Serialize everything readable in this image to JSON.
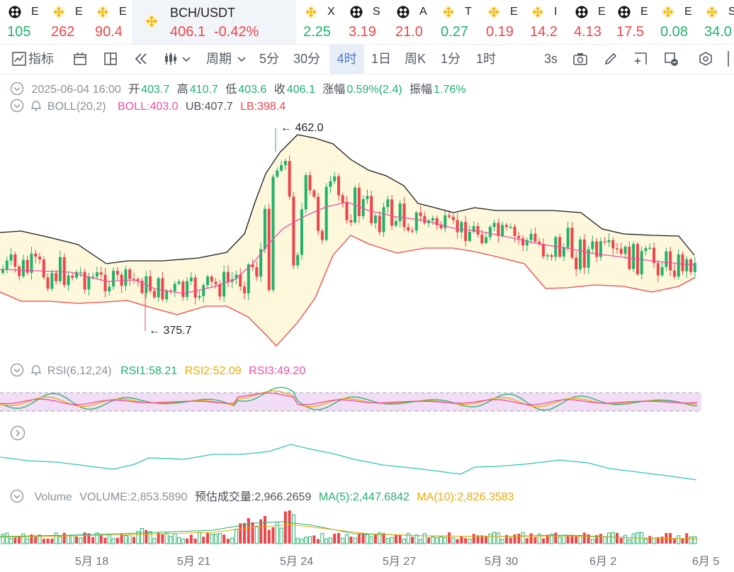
{
  "ticker": [
    {
      "glyph": "bw",
      "name": "E",
      "price": "105",
      "dir": "up"
    },
    {
      "glyph": "bn",
      "name": "E",
      "price": "262",
      "dir": "dn"
    },
    {
      "glyph": "bn",
      "name": "E",
      "price": "90.4",
      "dir": "dn"
    },
    {
      "glyph": "bn",
      "name": "BCH/USDT",
      "price": "406.1",
      "change": "-0.42%",
      "dir": "dn",
      "active": true
    },
    {
      "glyph": "bn",
      "name": "X",
      "price": "2.25",
      "dir": "up"
    },
    {
      "glyph": "bw",
      "name": "S",
      "price": "3.19",
      "dir": "dn"
    },
    {
      "glyph": "bw",
      "name": "A",
      "price": "21.0",
      "dir": "dn"
    },
    {
      "glyph": "bn",
      "name": "T",
      "price": "0.27",
      "dir": "up"
    },
    {
      "glyph": "bn",
      "name": "E",
      "price": "0.19",
      "dir": "dn"
    },
    {
      "glyph": "bn",
      "name": "I",
      "price": "14.2",
      "dir": "dn"
    },
    {
      "glyph": "bw",
      "name": "E",
      "price": "4.13",
      "dir": "dn"
    },
    {
      "glyph": "bw",
      "name": "E",
      "price": "17.5",
      "dir": "dn"
    },
    {
      "glyph": "bn",
      "name": "E",
      "price": "0.08",
      "dir": "up"
    },
    {
      "glyph": "bn",
      "name": "S",
      "price": "34.0",
      "dir": "up"
    }
  ],
  "toolbar": {
    "indicator_label": "指标",
    "period_label": "周期",
    "intervals": [
      "5分",
      "30分",
      "4时",
      "1日",
      "周K",
      "1分",
      "1时"
    ],
    "selected_interval": "4时",
    "refresh": "3s"
  },
  "ohlc": {
    "date": "2025-06-04 16:00",
    "open_label": "开",
    "open": "403.7",
    "high_label": "高",
    "high": "410.7",
    "low_label": "低",
    "low": "403.6",
    "close_label": "收",
    "close": "406.1",
    "change_label": "涨幅",
    "change": "0.59%(2.4)",
    "amp_label": "振幅",
    "amp": "1.76%"
  },
  "boll": {
    "name": "BOLL(20,2)",
    "mid": "BOLL:403.0",
    "ub": "UB:407.7",
    "lb": "LB:398.4"
  },
  "price_labels": {
    "high": "462.0",
    "low": "375.7"
  },
  "rsi": {
    "name": "RSI(6,12,24)",
    "rsi1": "RSI1:58.21",
    "rsi2": "RSI2:52.09",
    "rsi3": "RSI3:49.20"
  },
  "volume": {
    "name": "Volume",
    "vol": "VOLUME:2,853.5890",
    "est": "预估成交量:2,966.2659",
    "ma5": "MA(5):2,447.6842",
    "ma10": "MA(10):2,826.3583"
  },
  "x_axis": [
    "5月 18",
    "5月 21",
    "5月 24",
    "5月 27",
    "5月 30",
    "6月 2",
    "6月 5"
  ],
  "colors": {
    "up": "#20b26c",
    "down": "#ef454a",
    "boll_mid": "#ec4fa5",
    "band_fill": "#fdf8dc",
    "rsi_band": "#f1ddf5",
    "accent": "#4b7bd3"
  }
}
